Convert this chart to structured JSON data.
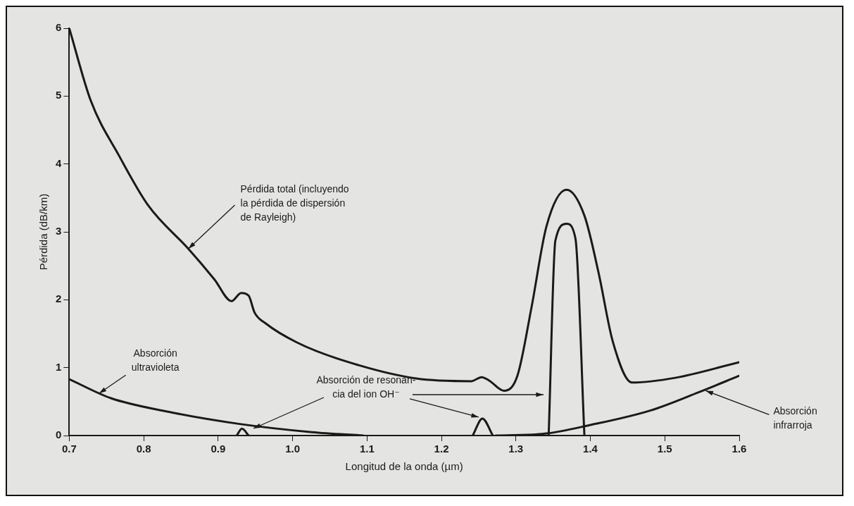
{
  "chart_data": {
    "type": "line",
    "xlabel": "Longitud de la onda (µm)",
    "ylabel": "Pérdida (dB/km)",
    "xlim": [
      0.7,
      1.6
    ],
    "xticks": [
      0.7,
      0.8,
      0.9,
      {
        "value": 1,
        "label": "1.0"
      },
      1.1,
      1.2,
      1.3,
      1.4,
      1.5,
      1.6
    ],
    "ylim": [
      0,
      6
    ],
    "yticks": [
      0,
      1,
      2,
      3,
      4,
      5,
      6
    ],
    "grid": false,
    "legend": false,
    "marker": "none",
    "line_style": "solid",
    "series": [
      {
        "color": "#1a1a1a",
        "x": [
          0.7,
          0.729,
          0.767,
          0.806,
          0.86,
          0.895,
          0.918,
          0.931,
          0.941,
          0.949,
          0.964,
          1.006,
          1.064,
          1.166,
          1.24,
          1.254,
          1.264,
          1.284,
          1.302,
          1.321,
          1.341,
          1.368,
          1.392,
          1.411,
          1.43,
          1.456,
          1.514,
          1.6
        ],
        "values": [
          6.0,
          4.93,
          4.12,
          3.39,
          2.75,
          2.3,
          1.98,
          2.1,
          2.06,
          1.81,
          1.65,
          1.37,
          1.12,
          0.84,
          0.8,
          0.86,
          0.81,
          0.66,
          0.88,
          1.89,
          3.08,
          3.62,
          3.24,
          2.4,
          1.39,
          0.78,
          0.85,
          1.08
        ]
      },
      {
        "color": "#1a1a1a",
        "x": [
          0.7,
          0.756,
          0.833,
          0.929,
          1.026,
          1.095
        ],
        "values": [
          0.83,
          0.55,
          0.35,
          0.17,
          0.05,
          0
        ]
      },
      {
        "color": "#1a1a1a",
        "x": [
          1.273,
          1.341,
          1.398,
          1.481,
          1.546,
          1.6
        ],
        "values": [
          0,
          0.03,
          0.15,
          0.37,
          0.64,
          0.88
        ]
      },
      {
        "color": "#1a1a1a",
        "x": [
          0.925,
          0.932,
          0.941,
          1.0,
          1.242,
          1.255,
          1.269,
          1.3,
          1.344,
          1.353,
          1.368,
          1.38,
          1.392
        ],
        "values": [
          0,
          0.1,
          0,
          null,
          0,
          0.25,
          0,
          null,
          0,
          2.87,
          3.12,
          2.9,
          0
        ]
      }
    ],
    "annotations": [
      {
        "text": "Pérdida total (incluyendo\nla pérdida de dispersión\nde Rayleigh)",
        "x": 0.86,
        "y": 2.75
      },
      {
        "text": "Absorción\nultravioleta",
        "x": 0.74,
        "y": 0.62
      },
      {
        "text": "Absorción de resonan-\ncia del ion OH⁻",
        "x": 1.25,
        "y": 0.27
      },
      {
        "text": "Absorción\ninfrarroja",
        "x": 1.555,
        "y": 0.66
      }
    ]
  }
}
